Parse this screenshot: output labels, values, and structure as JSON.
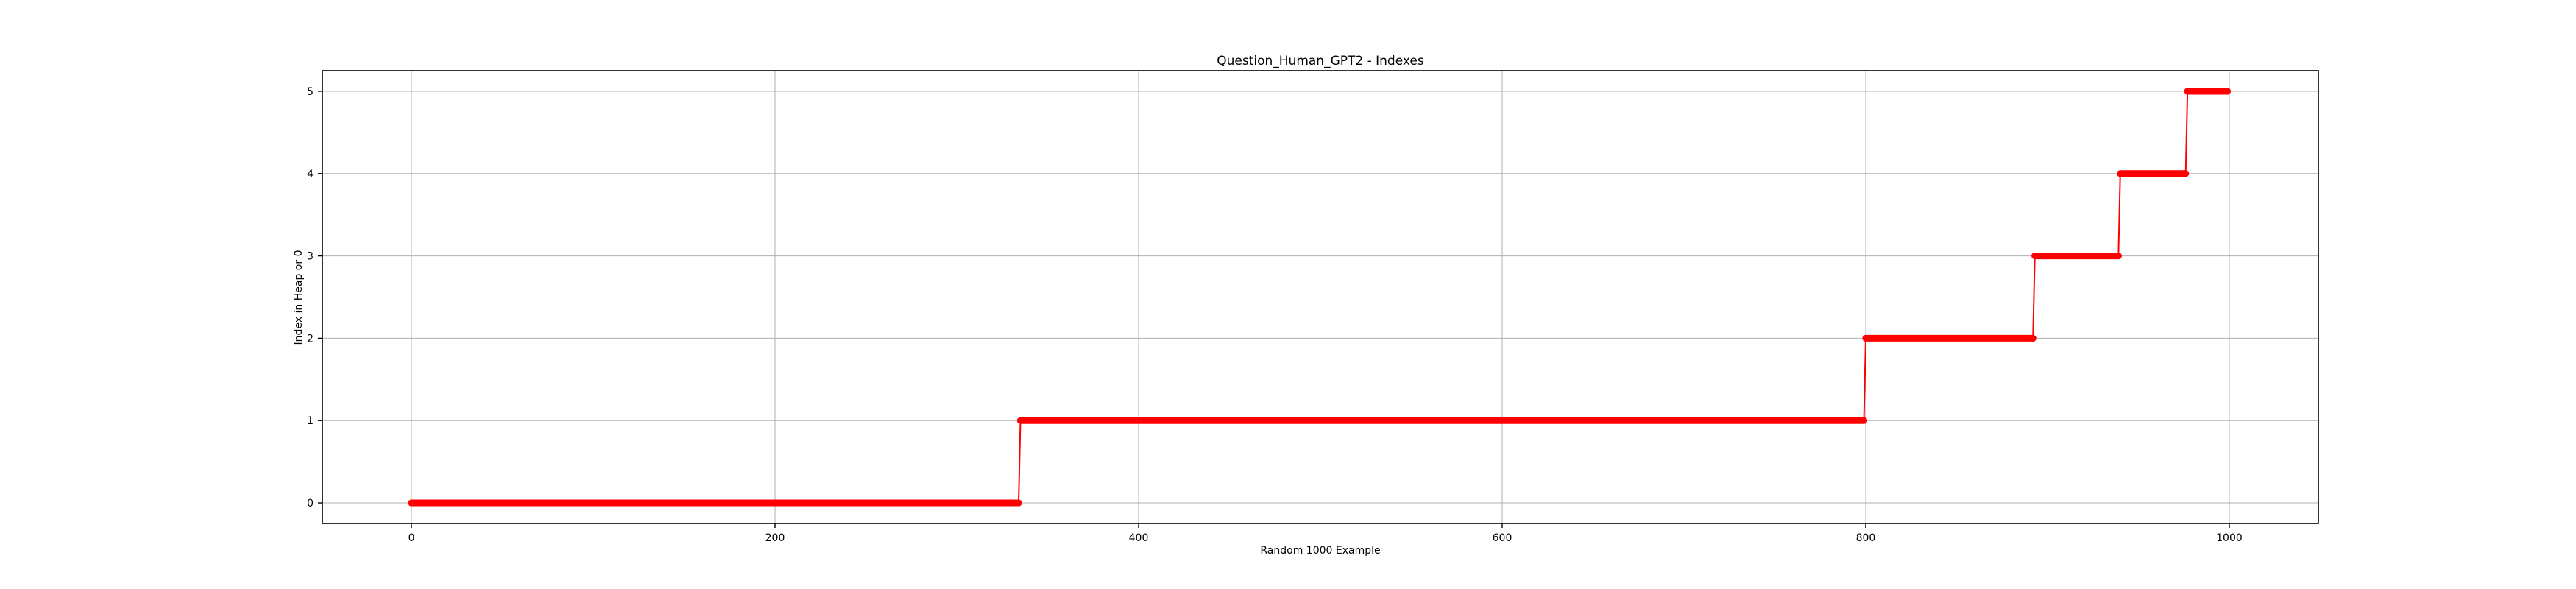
{
  "chart_data": {
    "type": "line",
    "title": "Question_Human_GPT2 - Indexes",
    "xlabel": "Random 1000 Example",
    "ylabel": "Index in Heap or 0",
    "xlim": [
      -49,
      1049
    ],
    "ylim": [
      -0.25,
      5.25
    ],
    "xticks": [
      0,
      200,
      400,
      600,
      800,
      1000
    ],
    "yticks": [
      0,
      1,
      2,
      3,
      4,
      5
    ],
    "grid": true,
    "legend": "none",
    "series": [
      {
        "color": "#ff0000",
        "marker": "circle",
        "segments": [
          {
            "x_start": 0,
            "x_end": 334,
            "y": 0
          },
          {
            "x_start": 335,
            "x_end": 799,
            "y": 1
          },
          {
            "x_start": 800,
            "x_end": 892,
            "y": 2
          },
          {
            "x_start": 893,
            "x_end": 939,
            "y": 3
          },
          {
            "x_start": 940,
            "x_end": 976,
            "y": 4
          },
          {
            "x_start": 977,
            "x_end": 999,
            "y": 5
          }
        ]
      }
    ]
  }
}
